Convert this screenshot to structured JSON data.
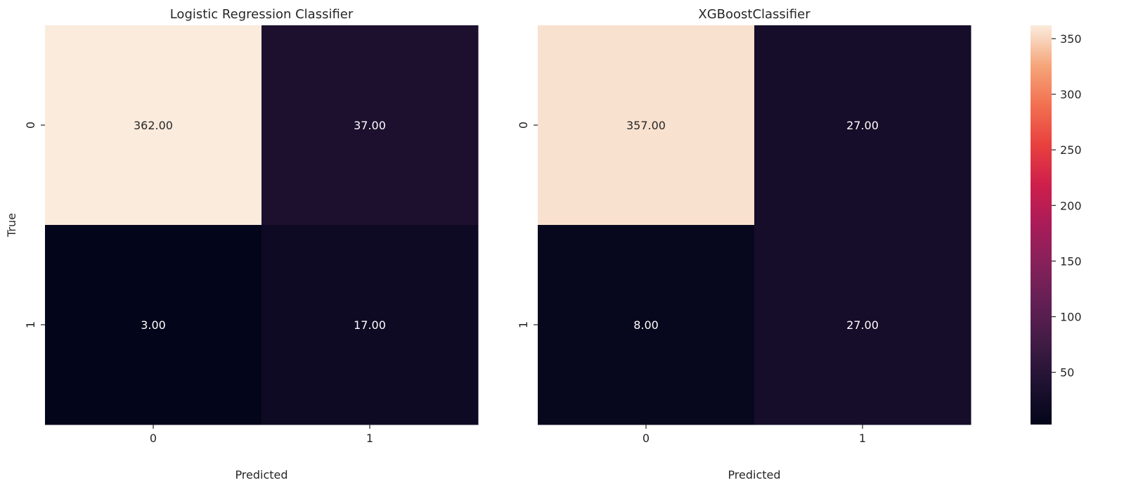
{
  "chart_data": [
    {
      "type": "heatmap",
      "title": "Logistic Regression Classifier",
      "xlabel": "Predicted",
      "ylabel": "True",
      "x_categories": [
        "0",
        "1"
      ],
      "y_categories": [
        "0",
        "1"
      ],
      "values": [
        [
          362,
          37
        ],
        [
          3,
          17
        ]
      ],
      "cell_labels": [
        [
          "362.00",
          "37.00"
        ],
        [
          "3.00",
          "17.00"
        ]
      ]
    },
    {
      "type": "heatmap",
      "title": "XGBoostClassifier",
      "xlabel": "Predicted",
      "ylabel": "",
      "x_categories": [
        "0",
        "1"
      ],
      "y_categories": [
        "0",
        "1"
      ],
      "values": [
        [
          357,
          27
        ],
        [
          8,
          27
        ]
      ],
      "cell_labels": [
        [
          "357.00",
          "27.00"
        ],
        [
          "8.00",
          "27.00"
        ]
      ]
    }
  ],
  "colorbar": {
    "colormap": "rocket",
    "range": [
      3,
      362
    ],
    "ticks": [
      50,
      100,
      150,
      200,
      250,
      300,
      350
    ],
    "tick_labels": [
      "50",
      "100",
      "150",
      "200",
      "250",
      "300",
      "350"
    ]
  },
  "colors": {
    "text_on_light": "#262626",
    "text_on_dark": "#ffffff",
    "axis_text": "#262626"
  }
}
